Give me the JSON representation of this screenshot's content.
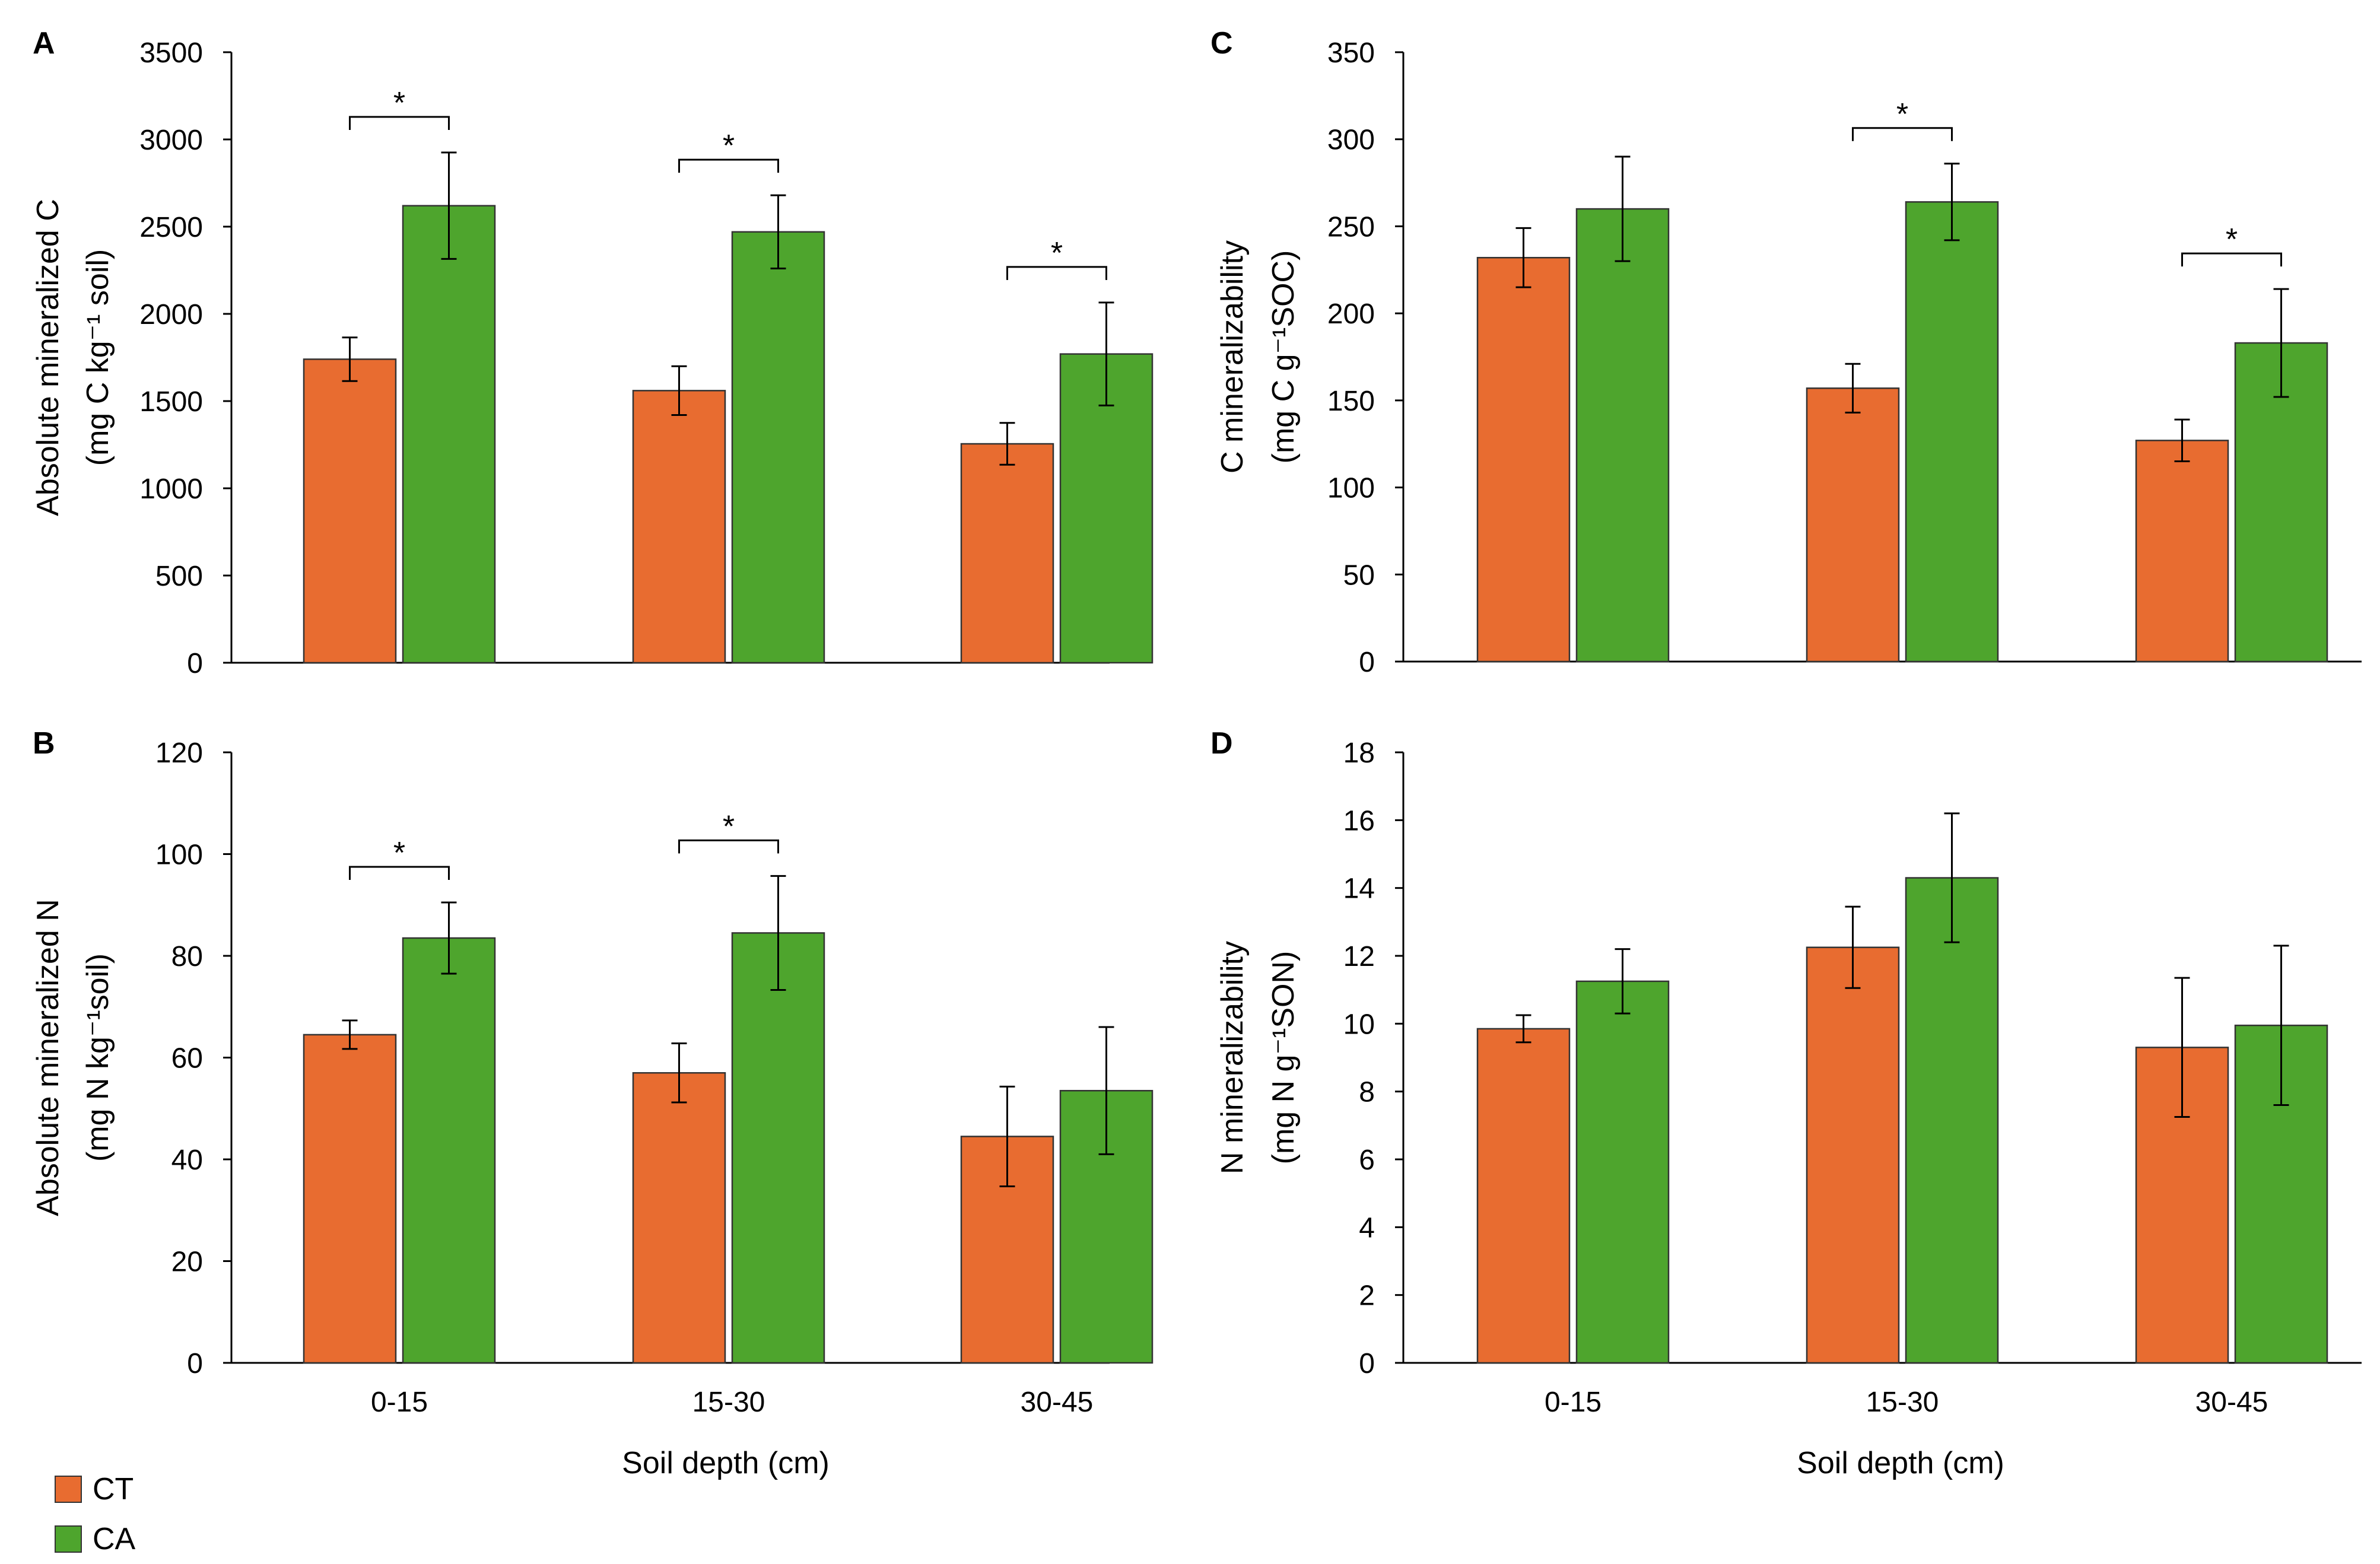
{
  "colors": {
    "CT": "#e86c30",
    "CA": "#4ea52d"
  },
  "legend": [
    {
      "key": "CT",
      "label": "CT"
    },
    {
      "key": "CA",
      "label": "CA"
    }
  ],
  "x_axis_title": "Soil depth (cm)",
  "chart_data": [
    {
      "panel": "A",
      "type": "bar",
      "ylabel_line1": "Absolute mineralized C",
      "ylabel_line2": "(mg C kg⁻¹ soil)",
      "categories": [
        "0-15",
        "15-30",
        "30-45"
      ],
      "ylim": [
        0,
        3500
      ],
      "yticks": [
        0,
        500,
        1000,
        1500,
        2000,
        2500,
        3000,
        3500
      ],
      "series": [
        {
          "name": "CT",
          "values": [
            1740,
            1560,
            1255
          ],
          "errors": [
            125,
            140,
            120
          ]
        },
        {
          "name": "CA",
          "values": [
            2620,
            2470,
            1770
          ],
          "errors": [
            305,
            210,
            295
          ]
        }
      ],
      "significance": [
        "*",
        "*",
        "*"
      ]
    },
    {
      "panel": "B",
      "type": "bar",
      "ylabel_line1": "Absolute mineralized N",
      "ylabel_line2": "(mg N kg⁻¹soil)",
      "categories": [
        "0-15",
        "15-30",
        "30-45"
      ],
      "ylim": [
        0,
        120
      ],
      "yticks": [
        0,
        20,
        40,
        60,
        80,
        100,
        120
      ],
      "series": [
        {
          "name": "CT",
          "values": [
            64.5,
            57,
            44.5
          ],
          "errors": [
            2.8,
            5.8,
            9.8
          ]
        },
        {
          "name": "CA",
          "values": [
            83.5,
            84.5,
            53.5
          ],
          "errors": [
            7,
            11.2,
            12.5
          ]
        }
      ],
      "significance": [
        "*",
        "*",
        ""
      ]
    },
    {
      "panel": "C",
      "type": "bar",
      "ylabel_line1": "C mineralizability",
      "ylabel_line2": "(mg C g⁻¹SOC)",
      "categories": [
        "0-15",
        "15-30",
        "30-45"
      ],
      "ylim": [
        0,
        350
      ],
      "yticks": [
        0,
        50,
        100,
        150,
        200,
        250,
        300,
        350
      ],
      "series": [
        {
          "name": "CT",
          "values": [
            232,
            157,
            127
          ],
          "errors": [
            17,
            14,
            12
          ]
        },
        {
          "name": "CA",
          "values": [
            260,
            264,
            183
          ],
          "errors": [
            30,
            22,
            31
          ]
        }
      ],
      "significance": [
        "",
        "*",
        "*"
      ]
    },
    {
      "panel": "D",
      "type": "bar",
      "ylabel_line1": "N  mineralizability",
      "ylabel_line2": "(mg N g⁻¹SON)",
      "categories": [
        "0-15",
        "15-30",
        "30-45"
      ],
      "ylim": [
        0,
        18
      ],
      "yticks": [
        0,
        2,
        4,
        6,
        8,
        10,
        12,
        14,
        16,
        18
      ],
      "series": [
        {
          "name": "CT",
          "values": [
            9.85,
            12.25,
            9.3
          ],
          "errors": [
            0.4,
            1.2,
            2.05
          ]
        },
        {
          "name": "CA",
          "values": [
            11.25,
            14.3,
            9.95
          ],
          "errors": [
            0.95,
            1.9,
            2.35
          ]
        }
      ],
      "significance": [
        "",
        "",
        ""
      ]
    }
  ]
}
